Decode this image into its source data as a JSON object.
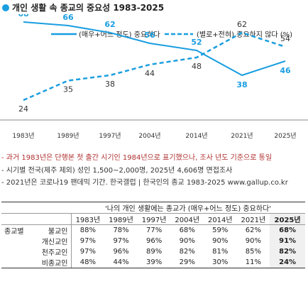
{
  "title": "개인 생활 속 종교의 중요성 1983-2025",
  "colors": {
    "accent": "#1a9ee0"
  },
  "chart_data": {
    "type": "line",
    "categories": [
      "1983년",
      "1989년",
      "1997년",
      "2004년",
      "2014년",
      "2021년",
      "2025년"
    ],
    "series": [
      {
        "name": "(매우+어느 정도) 중요하다",
        "values": [
          68,
          66,
          62,
          56,
          52,
          38,
          46
        ],
        "style": "solid",
        "color": "#1a9ee0"
      },
      {
        "name": "(별로+전혀) 중요하지 않다 (%)",
        "values": [
          24,
          35,
          38,
          44,
          48,
          62,
          54
        ],
        "style": "dashed",
        "color": "#1a9ee0"
      }
    ],
    "ylim": [
      0,
      100
    ],
    "grid": false,
    "legend": "top"
  },
  "notes": [
    "- 과거 1983년은 단행본 첫 출간 시기인 1984년으로 표기했으나, 조사 년도 기준으로 통일",
    "- 시기별 전국(제주 제외) 성인 1,500~2,000명, 2025년 4,606명 면접조사",
    "- 2021년은 코로나19 팬데믹 기간. 한국갤럽 | 한국인의 종교 1983-2025 www.gallup.co.kr"
  ],
  "table": {
    "caption": "'나의 개인 생활에는 종교가 (매우+어느 정도) 중요하다'",
    "years": [
      "1983년",
      "1989년",
      "1997년",
      "2004년",
      "2014년",
      "2021년",
      "2025년"
    ],
    "group_label": "종교별",
    "rows": [
      {
        "label": "불교인",
        "values": [
          "88%",
          "78%",
          "77%",
          "68%",
          "59%",
          "62%",
          "68%"
        ]
      },
      {
        "label": "개신교인",
        "values": [
          "97%",
          "97%",
          "96%",
          "90%",
          "90%",
          "90%",
          "91%"
        ]
      },
      {
        "label": "천주교인",
        "values": [
          "97%",
          "96%",
          "89%",
          "82%",
          "81%",
          "85%",
          "82%"
        ]
      },
      {
        "label": "비종교인",
        "values": [
          "48%",
          "44%",
          "39%",
          "29%",
          "30%",
          "11%",
          "24%"
        ]
      }
    ]
  }
}
